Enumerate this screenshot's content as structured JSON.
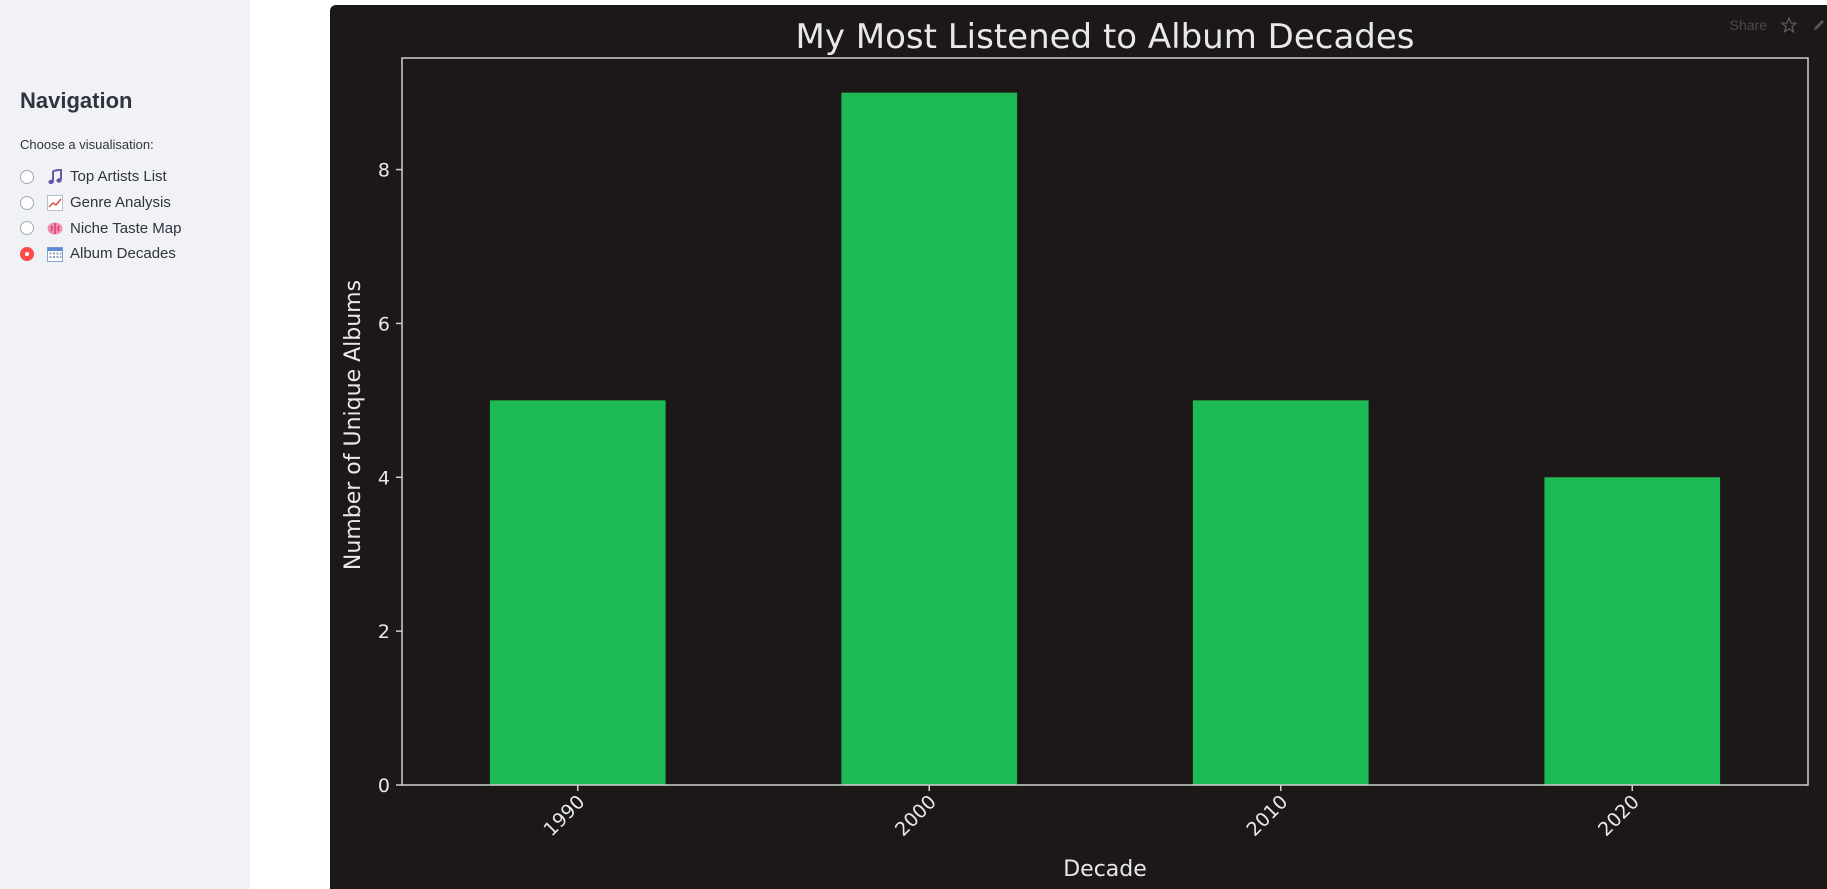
{
  "sidebar": {
    "title": "Navigation",
    "radio_caption": "Choose a visualisation:",
    "options": [
      {
        "label": "Top Artists List",
        "icon": "musical-note-icon",
        "checked": false
      },
      {
        "label": "Genre Analysis",
        "icon": "chart-increasing-icon",
        "checked": false
      },
      {
        "label": "Niche Taste Map",
        "icon": "brain-icon",
        "checked": false
      },
      {
        "label": "Album Decades",
        "icon": "calendar-icon",
        "checked": true
      }
    ]
  },
  "toolbar": {
    "share_label": "Share",
    "star_icon": "star-icon",
    "edit_icon": "pencil-icon"
  },
  "colors": {
    "bar": "#1db954",
    "chart_background": "#1b1817",
    "axes": "#d0cfcf",
    "text": "#e8e8e8",
    "radio_selected": "#ff4b4b"
  },
  "chart_data": {
    "type": "bar",
    "title": "My Most Listened to Album Decades",
    "xlabel": "Decade",
    "ylabel": "Number of Unique Albums",
    "categories": [
      "1990",
      "2000",
      "2010",
      "2020"
    ],
    "values": [
      5,
      9,
      5,
      4
    ],
    "ylim": [
      0,
      9.45
    ],
    "yticks": [
      "0",
      "2",
      "4",
      "6",
      "8"
    ],
    "grid": false,
    "legend": "none"
  }
}
